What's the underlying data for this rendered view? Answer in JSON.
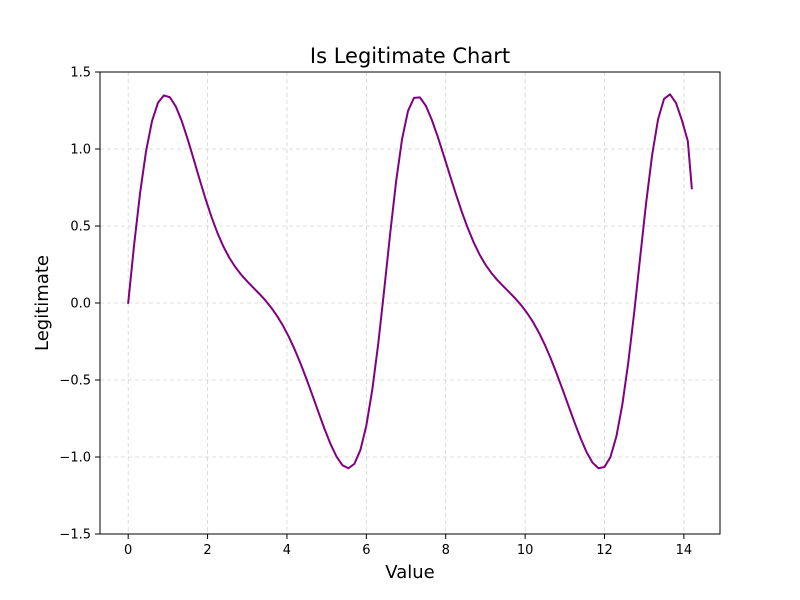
{
  "chart_data": {
    "type": "line",
    "title": "Is Legitimate Chart",
    "xlabel": "Value",
    "ylabel": "Legitimate",
    "xlim": [
      -0.71,
      14.91
    ],
    "ylim": [
      -1.5,
      1.5
    ],
    "grid": true,
    "color": "#800080",
    "x_ticks": [
      0,
      2,
      4,
      6,
      8,
      10,
      12,
      14
    ],
    "y_ticks": [
      1.5,
      1.0,
      0.5,
      0.0,
      -0.5,
      -1.0,
      -1.5
    ],
    "x_tick_labels": [
      "0",
      "2",
      "4",
      "6",
      "8",
      "10",
      "12",
      "14"
    ],
    "y_tick_labels": [
      "1.5",
      "1.0",
      "0.5",
      "0.0",
      "−0.5",
      "−1.0",
      "−1.5"
    ],
    "series": [
      {
        "x": [
          0,
          0.15,
          0.3,
          0.45,
          0.6,
          0.75,
          0.9,
          1.05,
          1.2,
          1.35,
          1.5,
          1.65,
          1.8,
          1.95,
          2.1,
          2.25,
          2.4,
          2.55,
          2.7,
          2.85,
          3.0,
          3.15,
          3.3,
          3.45,
          3.6,
          3.75,
          3.9,
          4.05,
          4.2,
          4.35,
          4.5,
          4.65,
          4.8,
          4.95,
          5.1,
          5.25,
          5.4,
          5.55,
          5.7,
          5.85,
          6.0,
          6.15,
          6.3,
          6.45,
          6.6,
          6.75,
          6.9,
          7.05,
          7.2,
          7.35,
          7.5,
          7.65,
          7.8,
          7.95,
          8.1,
          8.25,
          8.4,
          8.55,
          8.7,
          8.85,
          9.0,
          9.15,
          9.3,
          9.45,
          9.6,
          9.75,
          9.9,
          10.05,
          10.2,
          10.35,
          10.5,
          10.65,
          10.8,
          10.95,
          11.1,
          11.25,
          11.4,
          11.55,
          11.7,
          11.85,
          12.0,
          12.15,
          12.3,
          12.45,
          12.6,
          12.75,
          12.9,
          13.05,
          13.2,
          13.35,
          13.5,
          13.65,
          13.8,
          13.95,
          14.1,
          14.2
        ],
        "y": [
          0.0,
          0.379,
          0.714,
          0.985,
          1.181,
          1.3,
          1.348,
          1.336,
          1.276,
          1.181,
          1.063,
          0.934,
          0.802,
          0.675,
          0.558,
          0.454,
          0.366,
          0.293,
          0.233,
          0.183,
          0.14,
          0.1,
          0.061,
          0.019,
          -0.029,
          -0.084,
          -0.147,
          -0.221,
          -0.305,
          -0.398,
          -0.499,
          -0.605,
          -0.714,
          -0.82,
          -0.917,
          -0.998,
          -1.054,
          -1.073,
          -1.044,
          -0.955,
          -0.796,
          -0.563,
          -0.264,
          0.085,
          0.45,
          0.789,
          1.064,
          1.247,
          1.332,
          1.335,
          1.28,
          1.189,
          1.079,
          0.958,
          0.834,
          0.712,
          0.596,
          0.49,
          0.396,
          0.316,
          0.249,
          0.195,
          0.149,
          0.109,
          0.07,
          0.03,
          -0.014,
          -0.065,
          -0.124,
          -0.193,
          -0.273,
          -0.363,
          -0.462,
          -0.566,
          -0.673,
          -0.779,
          -0.88,
          -0.969,
          -1.037,
          -1.073,
          -1.065,
          -1.0,
          -0.866,
          -0.659,
          -0.385,
          -0.058,
          0.3,
          0.652,
          0.961,
          1.193,
          1.325,
          1.355,
          1.3,
          1.187,
          1.051,
          0.744
        ]
      }
    ]
  }
}
